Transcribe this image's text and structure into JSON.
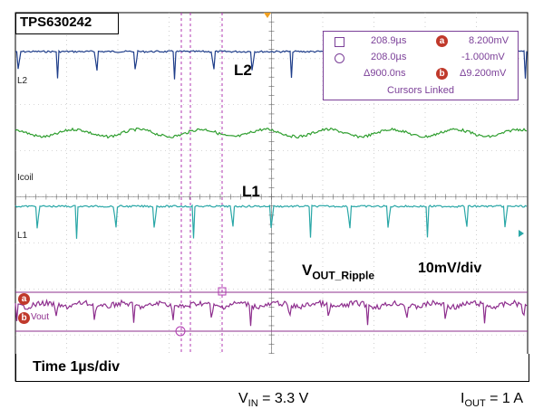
{
  "scope": {
    "device_label": "TPS630242",
    "time_scale": "Time 1µs/div",
    "channels": [
      {
        "id": "L2",
        "marker": "L2",
        "label": "L2",
        "color": "#1f3e8a"
      },
      {
        "id": "Icoil",
        "marker": "Icoil",
        "color": "#2f9e2f"
      },
      {
        "id": "L1",
        "marker": "L1",
        "label": "L1",
        "color": "#2aa7a7"
      },
      {
        "id": "Vout",
        "marker": "Vout",
        "color": "#8e2f8e"
      }
    ],
    "ripple_label_main": "V",
    "ripple_label_sub": "OUT_Ripple",
    "ripple_scale": "10mV/div"
  },
  "cursor_readout": {
    "row1_time": "208.9µs",
    "row1_badge": "a",
    "row1_value": "8.200mV",
    "row2_time": "208.0µs",
    "row2_value": "-1.000mV",
    "row3_time": "Δ900.0ns",
    "row3_badge": "b",
    "row3_value": "Δ9.200mV",
    "linked": "Cursors Linked"
  },
  "footer": {
    "vin_label": "V",
    "vin_sub": "IN",
    "vin_value": " = 3.3 V",
    "iout_label": "I",
    "iout_sub": "OUT",
    "iout_value": " = 1 A"
  },
  "colors": {
    "grid": "#b0b0b0",
    "cursor": "#b03ab0",
    "trigger": "#f0a020",
    "frame": "#000000"
  }
}
